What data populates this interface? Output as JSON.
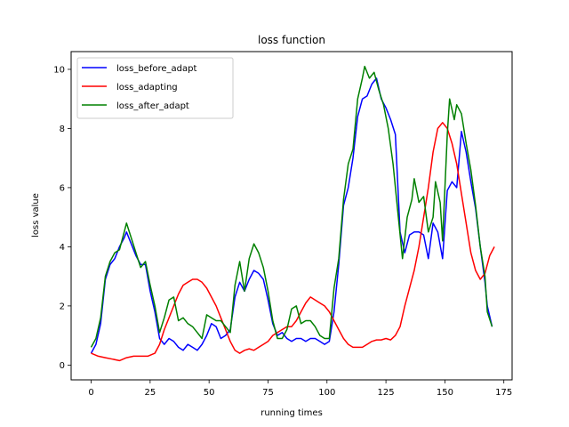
{
  "chart_data": {
    "type": "line",
    "title": "loss function",
    "xlabel": "running times",
    "ylabel": "loss value",
    "xlim": [
      -8.5,
      178.5
    ],
    "ylim": [
      -0.5,
      10.6
    ],
    "xticks": [
      0,
      25,
      50,
      75,
      100,
      125,
      150,
      175
    ],
    "yticks": [
      0,
      2,
      4,
      6,
      8,
      10
    ],
    "grid": false,
    "legend_position": "top-left",
    "series": [
      {
        "name": "loss_before_adapt",
        "color": "#0000ff",
        "points": [
          [
            0,
            0.4
          ],
          [
            2,
            0.7
          ],
          [
            4,
            1.4
          ],
          [
            6,
            2.9
          ],
          [
            8,
            3.4
          ],
          [
            10,
            3.6
          ],
          [
            12,
            4.0
          ],
          [
            14,
            4.3
          ],
          [
            15,
            4.5
          ],
          [
            17,
            4.1
          ],
          [
            19,
            3.7
          ],
          [
            21,
            3.4
          ],
          [
            23,
            3.4
          ],
          [
            25,
            2.5
          ],
          [
            27,
            1.8
          ],
          [
            29,
            0.9
          ],
          [
            31,
            0.7
          ],
          [
            33,
            0.9
          ],
          [
            35,
            0.8
          ],
          [
            37,
            0.6
          ],
          [
            39,
            0.5
          ],
          [
            41,
            0.7
          ],
          [
            43,
            0.6
          ],
          [
            45,
            0.5
          ],
          [
            47,
            0.7
          ],
          [
            49,
            1.0
          ],
          [
            51,
            1.4
          ],
          [
            53,
            1.3
          ],
          [
            55,
            0.9
          ],
          [
            57,
            1.0
          ],
          [
            59,
            1.2
          ],
          [
            61,
            2.3
          ],
          [
            63,
            2.8
          ],
          [
            65,
            2.5
          ],
          [
            67,
            2.9
          ],
          [
            69,
            3.2
          ],
          [
            71,
            3.1
          ],
          [
            73,
            2.9
          ],
          [
            75,
            2.2
          ],
          [
            77,
            1.4
          ],
          [
            79,
            1.0
          ],
          [
            81,
            1.1
          ],
          [
            83,
            0.9
          ],
          [
            85,
            0.8
          ],
          [
            87,
            0.9
          ],
          [
            89,
            0.9
          ],
          [
            91,
            0.8
          ],
          [
            93,
            0.9
          ],
          [
            95,
            0.9
          ],
          [
            97,
            0.8
          ],
          [
            99,
            0.7
          ],
          [
            101,
            0.8
          ],
          [
            103,
            1.8
          ],
          [
            105,
            3.4
          ],
          [
            107,
            5.4
          ],
          [
            109,
            6.0
          ],
          [
            111,
            7.0
          ],
          [
            113,
            8.4
          ],
          [
            115,
            9.0
          ],
          [
            117,
            9.1
          ],
          [
            119,
            9.5
          ],
          [
            121,
            9.7
          ],
          [
            123,
            9.0
          ],
          [
            125,
            8.7
          ],
          [
            127,
            8.3
          ],
          [
            129,
            7.8
          ],
          [
            131,
            4.5
          ],
          [
            133,
            3.8
          ],
          [
            135,
            4.4
          ],
          [
            137,
            4.5
          ],
          [
            139,
            4.5
          ],
          [
            141,
            4.4
          ],
          [
            143,
            3.6
          ],
          [
            145,
            4.8
          ],
          [
            147,
            4.5
          ],
          [
            149,
            3.6
          ],
          [
            151,
            5.9
          ],
          [
            153,
            6.2
          ],
          [
            155,
            6.0
          ],
          [
            157,
            7.9
          ],
          [
            159,
            7.2
          ],
          [
            161,
            6.2
          ],
          [
            163,
            5.3
          ],
          [
            165,
            4.0
          ],
          [
            167,
            2.8
          ],
          [
            168,
            2.0
          ],
          [
            170,
            1.3
          ]
        ]
      },
      {
        "name": "loss_adapting",
        "color": "#ff0000",
        "points": [
          [
            0,
            0.4
          ],
          [
            3,
            0.3
          ],
          [
            6,
            0.25
          ],
          [
            9,
            0.2
          ],
          [
            12,
            0.15
          ],
          [
            15,
            0.25
          ],
          [
            18,
            0.3
          ],
          [
            21,
            0.3
          ],
          [
            24,
            0.3
          ],
          [
            27,
            0.4
          ],
          [
            29,
            0.7
          ],
          [
            31,
            1.2
          ],
          [
            33,
            1.6
          ],
          [
            35,
            2.0
          ],
          [
            37,
            2.4
          ],
          [
            39,
            2.7
          ],
          [
            41,
            2.8
          ],
          [
            43,
            2.9
          ],
          [
            45,
            2.9
          ],
          [
            47,
            2.8
          ],
          [
            49,
            2.6
          ],
          [
            51,
            2.3
          ],
          [
            53,
            2.0
          ],
          [
            55,
            1.6
          ],
          [
            57,
            1.2
          ],
          [
            59,
            0.8
          ],
          [
            61,
            0.5
          ],
          [
            63,
            0.4
          ],
          [
            65,
            0.5
          ],
          [
            67,
            0.55
          ],
          [
            69,
            0.5
          ],
          [
            71,
            0.6
          ],
          [
            73,
            0.7
          ],
          [
            75,
            0.8
          ],
          [
            77,
            1.0
          ],
          [
            79,
            1.1
          ],
          [
            81,
            1.2
          ],
          [
            83,
            1.3
          ],
          [
            85,
            1.3
          ],
          [
            87,
            1.5
          ],
          [
            89,
            1.8
          ],
          [
            91,
            2.1
          ],
          [
            93,
            2.3
          ],
          [
            95,
            2.2
          ],
          [
            97,
            2.1
          ],
          [
            99,
            2.0
          ],
          [
            101,
            1.8
          ],
          [
            103,
            1.5
          ],
          [
            105,
            1.2
          ],
          [
            107,
            0.9
          ],
          [
            109,
            0.7
          ],
          [
            111,
            0.6
          ],
          [
            113,
            0.6
          ],
          [
            115,
            0.6
          ],
          [
            117,
            0.7
          ],
          [
            119,
            0.8
          ],
          [
            121,
            0.85
          ],
          [
            123,
            0.85
          ],
          [
            125,
            0.9
          ],
          [
            127,
            0.85
          ],
          [
            129,
            1.0
          ],
          [
            131,
            1.3
          ],
          [
            133,
            2.0
          ],
          [
            135,
            2.6
          ],
          [
            137,
            3.2
          ],
          [
            139,
            4.0
          ],
          [
            141,
            5.0
          ],
          [
            143,
            6.0
          ],
          [
            145,
            7.2
          ],
          [
            147,
            8.0
          ],
          [
            149,
            8.2
          ],
          [
            151,
            8.0
          ],
          [
            153,
            7.5
          ],
          [
            155,
            6.8
          ],
          [
            157,
            5.8
          ],
          [
            159,
            4.8
          ],
          [
            161,
            3.8
          ],
          [
            163,
            3.2
          ],
          [
            165,
            2.9
          ],
          [
            167,
            3.1
          ],
          [
            169,
            3.7
          ],
          [
            171,
            4.0
          ]
        ]
      },
      {
        "name": "loss_after_adapt",
        "color": "#008000",
        "points": [
          [
            0,
            0.6
          ],
          [
            2,
            0.9
          ],
          [
            4,
            1.6
          ],
          [
            6,
            3.0
          ],
          [
            8,
            3.5
          ],
          [
            10,
            3.8
          ],
          [
            12,
            3.9
          ],
          [
            14,
            4.5
          ],
          [
            15,
            4.8
          ],
          [
            17,
            4.3
          ],
          [
            19,
            3.8
          ],
          [
            21,
            3.3
          ],
          [
            23,
            3.5
          ],
          [
            25,
            2.7
          ],
          [
            27,
            2.0
          ],
          [
            29,
            1.1
          ],
          [
            31,
            1.6
          ],
          [
            33,
            2.2
          ],
          [
            35,
            2.3
          ],
          [
            37,
            1.5
          ],
          [
            39,
            1.6
          ],
          [
            41,
            1.4
          ],
          [
            43,
            1.3
          ],
          [
            45,
            1.1
          ],
          [
            47,
            0.9
          ],
          [
            49,
            1.7
          ],
          [
            51,
            1.6
          ],
          [
            53,
            1.5
          ],
          [
            55,
            1.5
          ],
          [
            57,
            1.3
          ],
          [
            59,
            1.1
          ],
          [
            61,
            2.7
          ],
          [
            63,
            3.5
          ],
          [
            65,
            2.5
          ],
          [
            67,
            3.6
          ],
          [
            69,
            4.1
          ],
          [
            71,
            3.8
          ],
          [
            73,
            3.3
          ],
          [
            75,
            2.5
          ],
          [
            77,
            1.5
          ],
          [
            79,
            0.9
          ],
          [
            81,
            0.9
          ],
          [
            83,
            1.2
          ],
          [
            85,
            1.9
          ],
          [
            87,
            2.0
          ],
          [
            89,
            1.4
          ],
          [
            91,
            1.5
          ],
          [
            93,
            1.5
          ],
          [
            95,
            1.3
          ],
          [
            97,
            1.0
          ],
          [
            99,
            0.9
          ],
          [
            101,
            0.9
          ],
          [
            103,
            2.6
          ],
          [
            105,
            3.6
          ],
          [
            107,
            5.6
          ],
          [
            109,
            6.8
          ],
          [
            111,
            7.3
          ],
          [
            113,
            9.0
          ],
          [
            115,
            9.7
          ],
          [
            116,
            10.1
          ],
          [
            118,
            9.7
          ],
          [
            120,
            9.9
          ],
          [
            122,
            9.3
          ],
          [
            124,
            8.8
          ],
          [
            126,
            8.0
          ],
          [
            128,
            6.8
          ],
          [
            130,
            5.2
          ],
          [
            132,
            3.6
          ],
          [
            134,
            5.0
          ],
          [
            136,
            5.6
          ],
          [
            137,
            6.3
          ],
          [
            139,
            5.5
          ],
          [
            141,
            5.7
          ],
          [
            143,
            4.5
          ],
          [
            145,
            5.0
          ],
          [
            146,
            6.2
          ],
          [
            148,
            5.5
          ],
          [
            149,
            4.2
          ],
          [
            151,
            7.8
          ],
          [
            152,
            9.0
          ],
          [
            154,
            8.3
          ],
          [
            155,
            8.8
          ],
          [
            157,
            8.5
          ],
          [
            159,
            7.5
          ],
          [
            161,
            6.6
          ],
          [
            163,
            5.4
          ],
          [
            165,
            4.0
          ],
          [
            167,
            3.0
          ],
          [
            168,
            1.8
          ],
          [
            170,
            1.3
          ]
        ]
      }
    ]
  }
}
